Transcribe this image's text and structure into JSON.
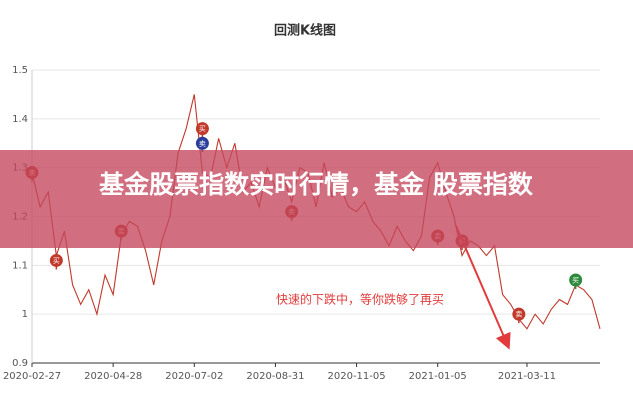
{
  "chart_data": {
    "type": "line",
    "title": "回测K线图",
    "banner": "基金股票指数实时行情，基金 股票指数",
    "annotation": "快速的下跌中，等你跌够了再买",
    "color": "#c0392b",
    "values": [
      1.29,
      1.22,
      1.25,
      1.12,
      1.17,
      1.06,
      1.02,
      1.05,
      1.0,
      1.08,
      1.04,
      1.16,
      1.19,
      1.18,
      1.13,
      1.06,
      1.15,
      1.2,
      1.33,
      1.38,
      1.45,
      1.29,
      1.28,
      1.36,
      1.3,
      1.35,
      1.25,
      1.27,
      1.22,
      1.3,
      1.26,
      1.28,
      1.23,
      1.3,
      1.29,
      1.22,
      1.31,
      1.24,
      1.26,
      1.22,
      1.21,
      1.23,
      1.19,
      1.17,
      1.14,
      1.18,
      1.15,
      1.13,
      1.16,
      1.28,
      1.31,
      1.25,
      1.2,
      1.12,
      1.15,
      1.14,
      1.12,
      1.14,
      1.04,
      1.02,
      0.99,
      0.97,
      1.0,
      0.98,
      1.01,
      1.03,
      1.02,
      1.06,
      1.05,
      1.03,
      0.97
    ],
    "markers": [
      {
        "x": 0,
        "y": 1.29,
        "label": "卖",
        "color": "#c0392b"
      },
      {
        "x": 3,
        "y": 1.11,
        "label": "买",
        "color": "#c0392b"
      },
      {
        "x": 11,
        "y": 1.17,
        "label": "卖",
        "color": "#c0392b"
      },
      {
        "x": 21,
        "y": 1.38,
        "label": "买",
        "color": "#c0392b"
      },
      {
        "x": 21,
        "y": 1.35,
        "label": "卖",
        "color": "#2c3e9c"
      },
      {
        "x": 32,
        "y": 1.21,
        "label": "卖",
        "color": "#c0392b"
      },
      {
        "x": 50,
        "y": 1.16,
        "label": "卖",
        "color": "#c0392b"
      },
      {
        "x": 53,
        "y": 1.15,
        "label": "买",
        "color": "#c0392b"
      },
      {
        "x": 60,
        "y": 1.0,
        "label": "卖",
        "color": "#c0392b"
      },
      {
        "x": 67,
        "y": 1.07,
        "label": "买",
        "color": "#2e8b3e"
      }
    ],
    "xlim": [
      0,
      70
    ],
    "xticks": [
      {
        "value": 0,
        "label": "2020-02-27"
      },
      {
        "value": 10,
        "label": "2020-04-28"
      },
      {
        "value": 20,
        "label": "2020-07-02"
      },
      {
        "value": 30,
        "label": "2020-08-31"
      },
      {
        "value": 40,
        "label": "2020-11-05"
      },
      {
        "value": 50,
        "label": "2021-01-05"
      },
      {
        "value": 61,
        "label": "2021-03-11"
      }
    ],
    "ylim": [
      0.9,
      1.5
    ],
    "yticks": [
      {
        "value": 0.9,
        "label": "0.9"
      },
      1,
      1.1,
      1.2,
      1.3,
      1.4,
      1.5
    ],
    "grid": true
  }
}
